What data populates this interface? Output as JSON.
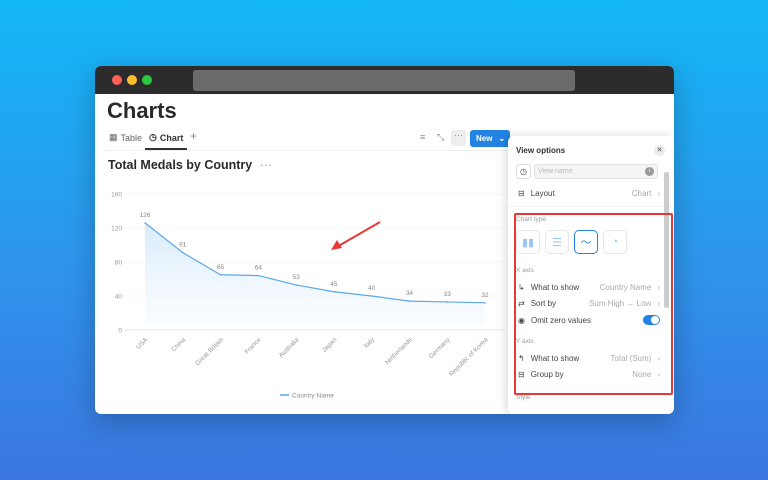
{
  "page": {
    "title": "Charts",
    "tabs": [
      {
        "label": "Table",
        "icon": "table-icon"
      },
      {
        "label": "Chart",
        "icon": "chart-icon",
        "active": true
      }
    ],
    "new_button": "New"
  },
  "chart": {
    "title": "Total Medals by Country"
  },
  "chart_data": {
    "type": "line",
    "categories": [
      "USA",
      "China",
      "Great Britain",
      "France",
      "Australia",
      "Japan",
      "Italy",
      "Netherlands",
      "Germany",
      "Republic of Korea"
    ],
    "series": [
      {
        "name": "Country Name",
        "values": [
          126,
          91,
          65,
          64,
          53,
          45,
          40,
          34,
          33,
          32
        ],
        "color": "#5aa9ec"
      }
    ],
    "y_ticks": [
      0,
      40,
      80,
      120,
      160
    ],
    "ylim": [
      0,
      160
    ],
    "grid": true,
    "legend": "bottom",
    "data_labels": true
  },
  "panel": {
    "title": "View options",
    "view_name_placeholder": "View name",
    "layout_label": "Layout",
    "layout_value": "Chart",
    "chart_type_label": "Chart type",
    "x_axis_label": "X axis",
    "x_what_label": "What to show",
    "x_what_value": "Country Name",
    "sort_label": "Sort by",
    "sort_value": "Sum High → Low",
    "omit_label": "Omit zero values",
    "omit_on": true,
    "y_axis_label": "Y axis",
    "y_what_label": "What to show",
    "y_what_value": "Total (Sum)",
    "group_label": "Group by",
    "group_value": "None",
    "style_label": "Style"
  },
  "colors": {
    "accent": "#2383e2",
    "highlight": "#e53935"
  }
}
